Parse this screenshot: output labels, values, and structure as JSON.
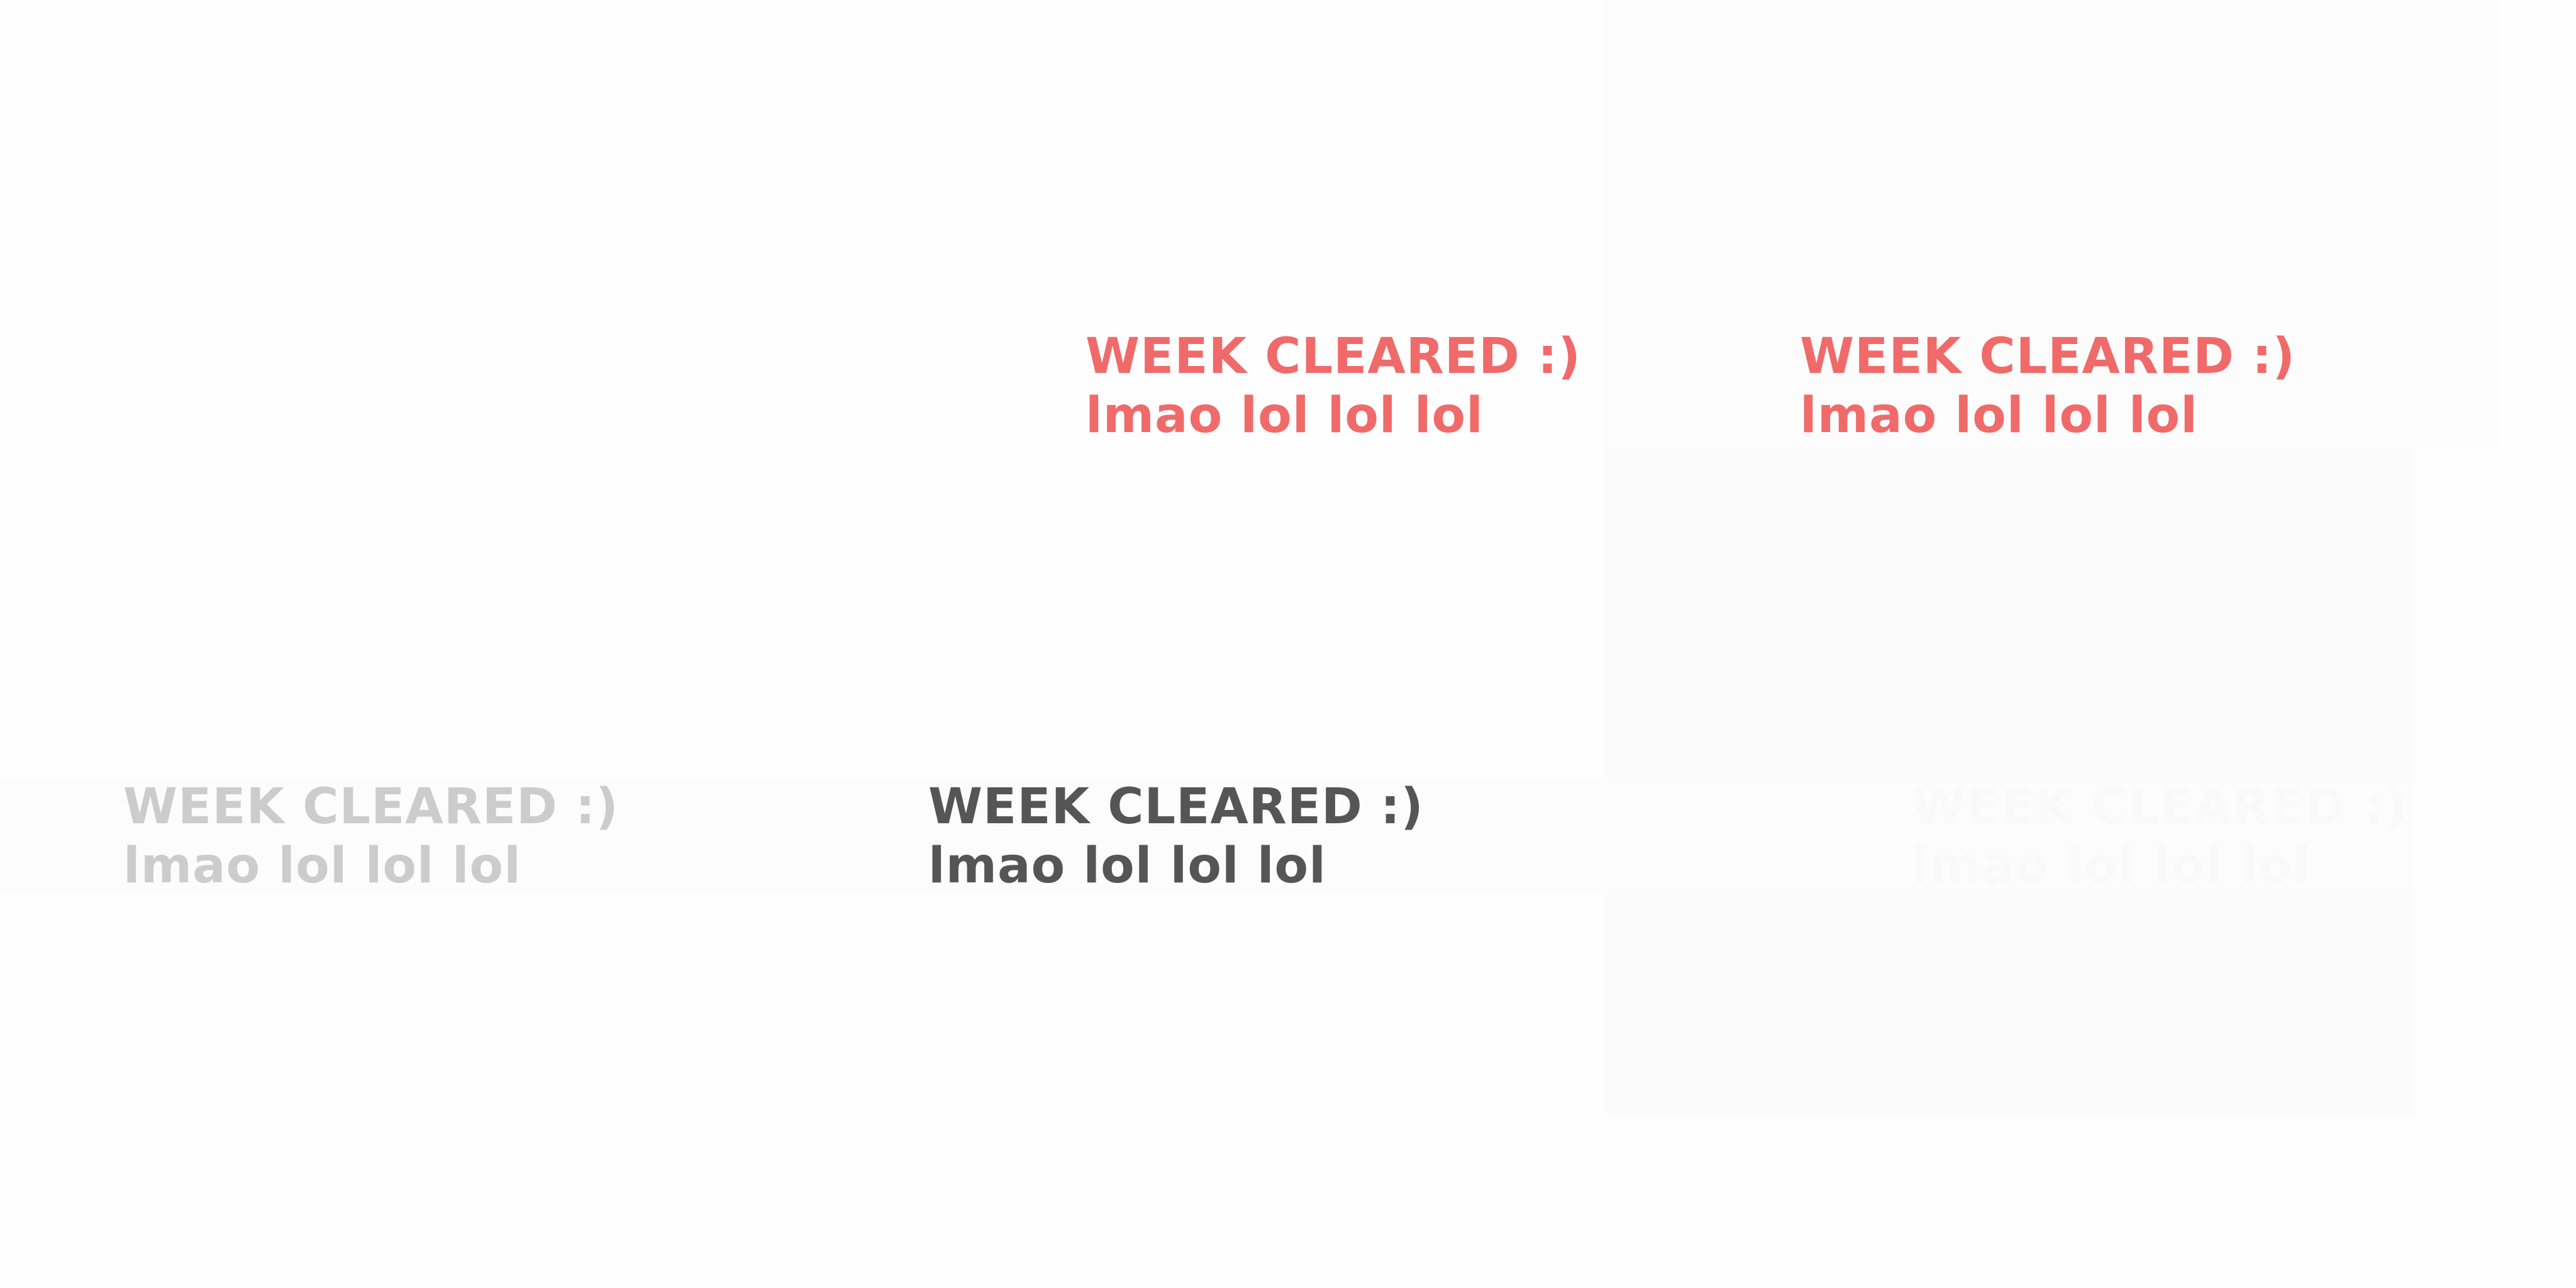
{
  "labels": [
    {
      "title": "WEEK CLEARED :)",
      "subtitle": "lmao lol lol lol",
      "color": "#f06a6a"
    },
    {
      "title": "WEEK CLEARED :)",
      "subtitle": "lmao lol lol lol",
      "color": "#f06a6a"
    },
    {
      "title": "WEEK CLEARED :)",
      "subtitle": "lmao lol lol lol",
      "color": "#cccccc"
    },
    {
      "title": "WEEK CLEARED :)",
      "subtitle": "lmao lol lol lol",
      "color": "#555555"
    },
    {
      "title": "WEEK CLEARED :)",
      "subtitle": "lmao lol lol lol",
      "color": "#f9f9f9"
    }
  ]
}
